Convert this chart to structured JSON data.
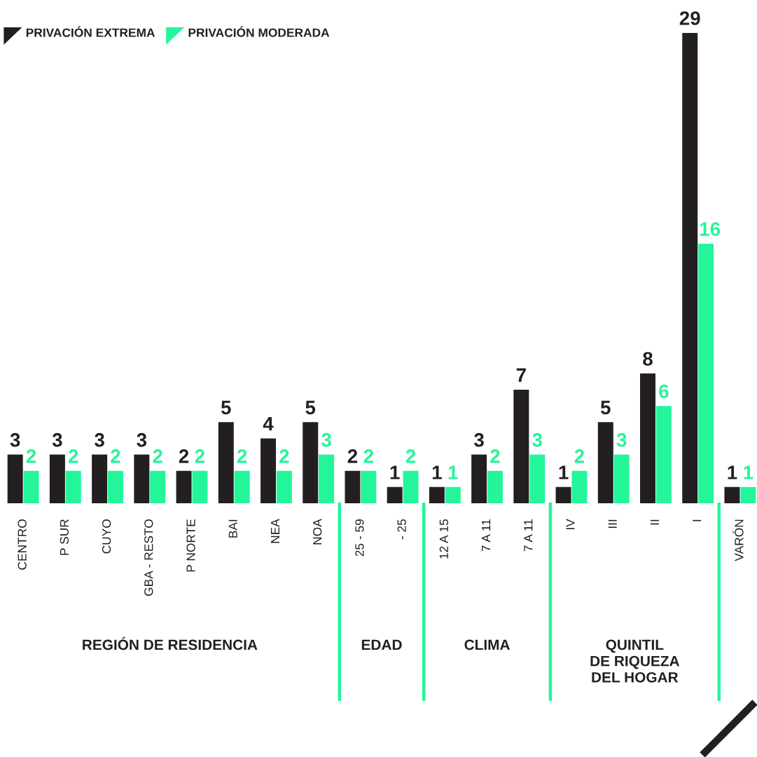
{
  "chart_data": [
    {
      "type": "bar",
      "categories": [
        "CENTRO",
        "P SUR",
        "CUYO",
        "GBA - RESTO",
        "P NORTE",
        "BAI",
        "NEA",
        "NOA"
      ],
      "series": [
        {
          "name": "PRIVACIÓN EXTREMA",
          "color": "#231f20",
          "values": [
            3,
            3,
            3,
            3,
            2,
            5,
            4,
            5
          ]
        },
        {
          "name": "PRIVACIÓN MODERADA",
          "color": "#24f59b",
          "values": [
            2,
            2,
            2,
            2,
            2,
            2,
            2,
            3
          ]
        }
      ],
      "data_labels": true,
      "legend": "top left",
      "xlabel": "REGIÓN DE RESIDENCIA"
    },
    {
      "type": "bar",
      "categories": [
        "25 - 59",
        "- 25"
      ],
      "series": [
        {
          "color": "#231f20",
          "values": [
            2,
            1
          ]
        },
        {
          "color": "#24f59b",
          "values": [
            2,
            2
          ]
        }
      ],
      "data_labels": true,
      "xlabel": "EDAD"
    },
    {
      "type": "bar",
      "categories": [
        "12 A 15",
        "7 A 11",
        "7 A 11"
      ],
      "series": [
        {
          "color": "#231f20",
          "values": [
            1,
            3,
            7
          ]
        },
        {
          "color": "#24f59b",
          "values": [
            1,
            2,
            3
          ]
        }
      ],
      "data_labels": true,
      "xlabel": "CLIMA"
    },
    {
      "type": "bar",
      "categories": [
        "IV",
        "III",
        "II",
        "I"
      ],
      "series": [
        {
          "color": "#231f20",
          "values": [
            1,
            5,
            8,
            29
          ]
        },
        {
          "color": "#24f59b",
          "values": [
            2,
            3,
            6,
            16
          ]
        }
      ],
      "data_labels": true,
      "xlabel": "QUINTIL\nDE RIQUEZA\nDEL HOGAR"
    },
    {
      "type": "bar",
      "categories": [
        "VARÓN"
      ],
      "series": [
        {
          "color": "#231f20",
          "values": [
            1
          ]
        },
        {
          "color": "#24f59b",
          "values": [
            1
          ]
        }
      ],
      "data_labels": true
    }
  ]
}
